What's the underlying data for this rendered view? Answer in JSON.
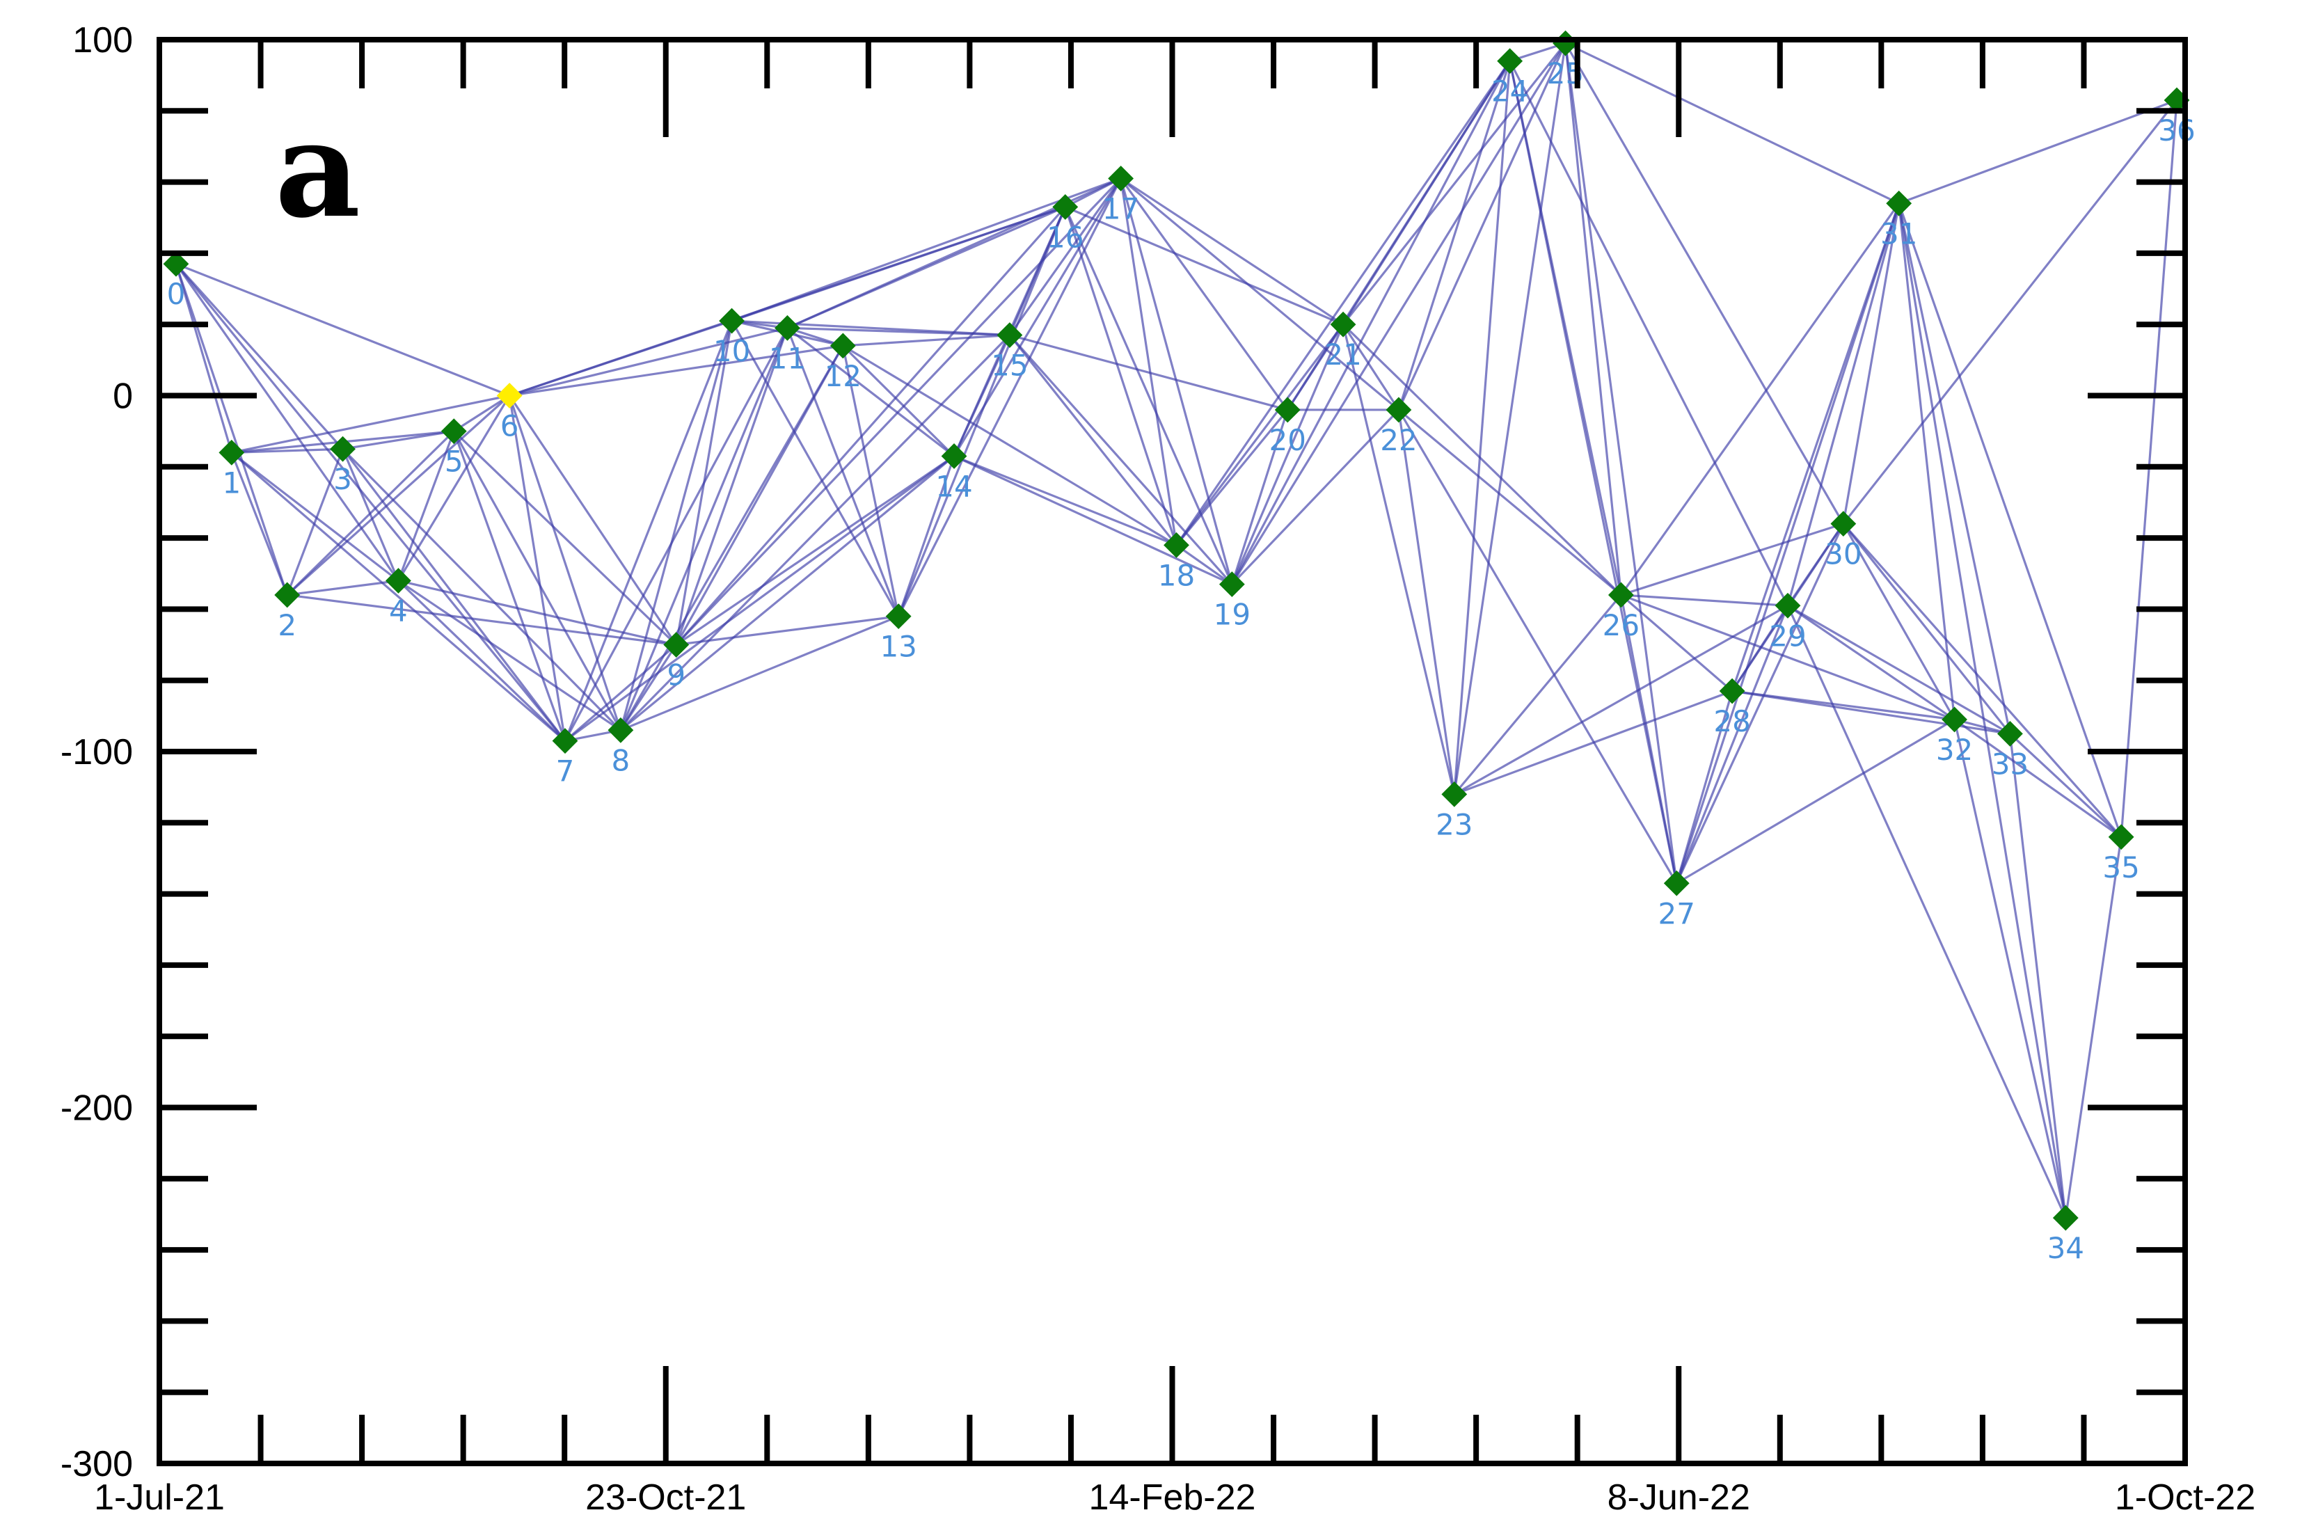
{
  "chart_data": {
    "type": "scatter",
    "panel_label": "a",
    "x_tick_labels": [
      "1-Jul-21",
      "23-Oct-21",
      "14-Feb-22",
      "8-Jun-22",
      "1-Oct-22"
    ],
    "y_ticks": [
      100,
      0,
      -100,
      -200,
      -300
    ],
    "ylim": [
      -300,
      100
    ],
    "nodes": [
      {
        "id": 0,
        "x": 0,
        "y": 37
      },
      {
        "id": 1,
        "x": 1,
        "y": -16
      },
      {
        "id": 2,
        "x": 2,
        "y": -56
      },
      {
        "id": 3,
        "x": 3,
        "y": -15
      },
      {
        "id": 4,
        "x": 4,
        "y": -52
      },
      {
        "id": 5,
        "x": 5,
        "y": -10
      },
      {
        "id": 6,
        "x": 6,
        "y": 0
      },
      {
        "id": 7,
        "x": 7,
        "y": -97
      },
      {
        "id": 8,
        "x": 8,
        "y": -94
      },
      {
        "id": 9,
        "x": 9,
        "y": -70
      },
      {
        "id": 10,
        "x": 10,
        "y": 21
      },
      {
        "id": 11,
        "x": 11,
        "y": 19
      },
      {
        "id": 12,
        "x": 12,
        "y": 14
      },
      {
        "id": 13,
        "x": 13,
        "y": -62
      },
      {
        "id": 14,
        "x": 14,
        "y": -17
      },
      {
        "id": 15,
        "x": 15,
        "y": 17
      },
      {
        "id": 16,
        "x": 16,
        "y": 53
      },
      {
        "id": 17,
        "x": 17,
        "y": 61
      },
      {
        "id": 18,
        "x": 18,
        "y": -42
      },
      {
        "id": 19,
        "x": 19,
        "y": -53
      },
      {
        "id": 20,
        "x": 20,
        "y": -4
      },
      {
        "id": 21,
        "x": 21,
        "y": 20
      },
      {
        "id": 22,
        "x": 22,
        "y": -4
      },
      {
        "id": 23,
        "x": 23,
        "y": -112
      },
      {
        "id": 24,
        "x": 24,
        "y": 94
      },
      {
        "id": 25,
        "x": 25,
        "y": 99
      },
      {
        "id": 26,
        "x": 26,
        "y": -56
      },
      {
        "id": 27,
        "x": 27,
        "y": -137
      },
      {
        "id": 28,
        "x": 28,
        "y": -83
      },
      {
        "id": 29,
        "x": 29,
        "y": -59
      },
      {
        "id": 30,
        "x": 30,
        "y": -36
      },
      {
        "id": 31,
        "x": 31,
        "y": 54
      },
      {
        "id": 32,
        "x": 32,
        "y": -91
      },
      {
        "id": 33,
        "x": 33,
        "y": -95
      },
      {
        "id": 34,
        "x": 34,
        "y": -231
      },
      {
        "id": 35,
        "x": 35,
        "y": -124
      },
      {
        "id": 36,
        "x": 36,
        "y": 83
      }
    ],
    "highlight_node": 6,
    "edges": [
      [
        0,
        1
      ],
      [
        0,
        2
      ],
      [
        0,
        3
      ],
      [
        0,
        4
      ],
      [
        0,
        6
      ],
      [
        0,
        7
      ],
      [
        1,
        2
      ],
      [
        1,
        3
      ],
      [
        1,
        4
      ],
      [
        1,
        5
      ],
      [
        1,
        6
      ],
      [
        1,
        7
      ],
      [
        2,
        3
      ],
      [
        2,
        4
      ],
      [
        2,
        5
      ],
      [
        2,
        6
      ],
      [
        2,
        9
      ],
      [
        3,
        4
      ],
      [
        3,
        5
      ],
      [
        3,
        7
      ],
      [
        3,
        8
      ],
      [
        4,
        5
      ],
      [
        4,
        6
      ],
      [
        4,
        7
      ],
      [
        4,
        8
      ],
      [
        4,
        9
      ],
      [
        5,
        6
      ],
      [
        5,
        7
      ],
      [
        5,
        8
      ],
      [
        5,
        9
      ],
      [
        6,
        7
      ],
      [
        6,
        8
      ],
      [
        6,
        9
      ],
      [
        6,
        10
      ],
      [
        6,
        11
      ],
      [
        6,
        12
      ],
      [
        6,
        16
      ],
      [
        7,
        8
      ],
      [
        7,
        9
      ],
      [
        7,
        10
      ],
      [
        7,
        11
      ],
      [
        7,
        14
      ],
      [
        8,
        9
      ],
      [
        8,
        10
      ],
      [
        8,
        11
      ],
      [
        8,
        12
      ],
      [
        8,
        13
      ],
      [
        8,
        14
      ],
      [
        8,
        15
      ],
      [
        9,
        10
      ],
      [
        9,
        11
      ],
      [
        9,
        12
      ],
      [
        9,
        13
      ],
      [
        9,
        14
      ],
      [
        9,
        16
      ],
      [
        9,
        17
      ],
      [
        10,
        11
      ],
      [
        10,
        12
      ],
      [
        10,
        13
      ],
      [
        10,
        15
      ],
      [
        10,
        16
      ],
      [
        10,
        17
      ],
      [
        11,
        12
      ],
      [
        11,
        13
      ],
      [
        11,
        14
      ],
      [
        11,
        15
      ],
      [
        11,
        16
      ],
      [
        11,
        17
      ],
      [
        12,
        13
      ],
      [
        12,
        14
      ],
      [
        12,
        15
      ],
      [
        12,
        18
      ],
      [
        13,
        14
      ],
      [
        13,
        16
      ],
      [
        13,
        17
      ],
      [
        14,
        15
      ],
      [
        14,
        16
      ],
      [
        14,
        17
      ],
      [
        14,
        18
      ],
      [
        14,
        19
      ],
      [
        15,
        16
      ],
      [
        15,
        17
      ],
      [
        15,
        18
      ],
      [
        15,
        19
      ],
      [
        15,
        20
      ],
      [
        16,
        17
      ],
      [
        16,
        18
      ],
      [
        16,
        19
      ],
      [
        16,
        21
      ],
      [
        17,
        18
      ],
      [
        17,
        19
      ],
      [
        17,
        20
      ],
      [
        17,
        21
      ],
      [
        17,
        22
      ],
      [
        18,
        19
      ],
      [
        18,
        20
      ],
      [
        18,
        21
      ],
      [
        18,
        24
      ],
      [
        19,
        20
      ],
      [
        19,
        21
      ],
      [
        19,
        22
      ],
      [
        19,
        24
      ],
      [
        19,
        25
      ],
      [
        20,
        21
      ],
      [
        20,
        22
      ],
      [
        20,
        24
      ],
      [
        21,
        22
      ],
      [
        21,
        23
      ],
      [
        21,
        24
      ],
      [
        21,
        25
      ],
      [
        21,
        26
      ],
      [
        22,
        23
      ],
      [
        22,
        24
      ],
      [
        22,
        25
      ],
      [
        22,
        26
      ],
      [
        22,
        27
      ],
      [
        23,
        24
      ],
      [
        23,
        25
      ],
      [
        23,
        26
      ],
      [
        23,
        28
      ],
      [
        23,
        29
      ],
      [
        24,
        25
      ],
      [
        24,
        26
      ],
      [
        24,
        27
      ],
      [
        24,
        29
      ],
      [
        25,
        26
      ],
      [
        25,
        27
      ],
      [
        25,
        30
      ],
      [
        25,
        31
      ],
      [
        26,
        27
      ],
      [
        26,
        28
      ],
      [
        26,
        29
      ],
      [
        26,
        30
      ],
      [
        26,
        31
      ],
      [
        26,
        32
      ],
      [
        27,
        28
      ],
      [
        27,
        29
      ],
      [
        27,
        30
      ],
      [
        27,
        31
      ],
      [
        27,
        32
      ],
      [
        28,
        29
      ],
      [
        28,
        30
      ],
      [
        28,
        31
      ],
      [
        28,
        32
      ],
      [
        28,
        33
      ],
      [
        29,
        30
      ],
      [
        29,
        31
      ],
      [
        29,
        32
      ],
      [
        29,
        33
      ],
      [
        29,
        34
      ],
      [
        30,
        31
      ],
      [
        30,
        32
      ],
      [
        30,
        33
      ],
      [
        30,
        35
      ],
      [
        30,
        36
      ],
      [
        31,
        32
      ],
      [
        31,
        33
      ],
      [
        31,
        34
      ],
      [
        31,
        35
      ],
      [
        31,
        36
      ],
      [
        32,
        33
      ],
      [
        32,
        34
      ],
      [
        32,
        35
      ],
      [
        33,
        34
      ],
      [
        33,
        35
      ],
      [
        34,
        35
      ],
      [
        35,
        36
      ]
    ],
    "colors": {
      "node": "#0a7a0a",
      "node_highlight": "#ffee00",
      "edge": "#3c3ca8",
      "label": "#4a90d9",
      "axis": "#000000"
    }
  }
}
